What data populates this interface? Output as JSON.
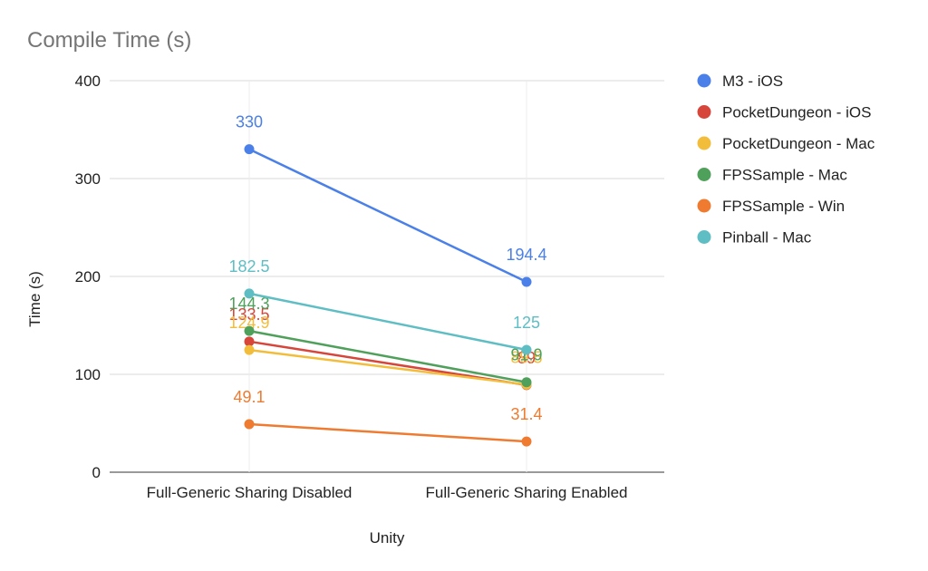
{
  "chart_data": {
    "type": "line",
    "title": "Compile Time (s)",
    "xlabel": "Unity",
    "ylabel": "Time (s)",
    "categories": [
      "Full-Generic Sharing Disabled",
      "Full-Generic Sharing Enabled"
    ],
    "ylim": [
      0,
      400
    ],
    "yticks": [
      0,
      100,
      200,
      300,
      400
    ],
    "grid": true,
    "legend": "right",
    "series": [
      {
        "name": "M3 - iOS",
        "color": "#4a80e8",
        "values": [
          330,
          194.4
        ],
        "labels": [
          "330",
          "194.4"
        ]
      },
      {
        "name": "PocketDungeon - iOS",
        "color": "#d6463b",
        "values": [
          133.5,
          89
        ],
        "labels": [
          "133.5",
          "89"
        ]
      },
      {
        "name": "PocketDungeon - Mac",
        "color": "#f3bd3c",
        "values": [
          124.9,
          89.5
        ],
        "labels": [
          "124.9",
          "89.5"
        ]
      },
      {
        "name": "FPSSample - Mac",
        "color": "#4fa05a",
        "values": [
          144.3,
          91.9
        ],
        "labels": [
          "144.3",
          "91.9"
        ]
      },
      {
        "name": "FPSSample - Win",
        "color": "#ee7b30",
        "values": [
          49.1,
          31.4
        ],
        "labels": [
          "49.1",
          "31.4"
        ]
      },
      {
        "name": "Pinball - Mac",
        "color": "#5ebec4",
        "values": [
          182.5,
          125
        ],
        "labels": [
          "182.5",
          "125"
        ]
      }
    ]
  }
}
